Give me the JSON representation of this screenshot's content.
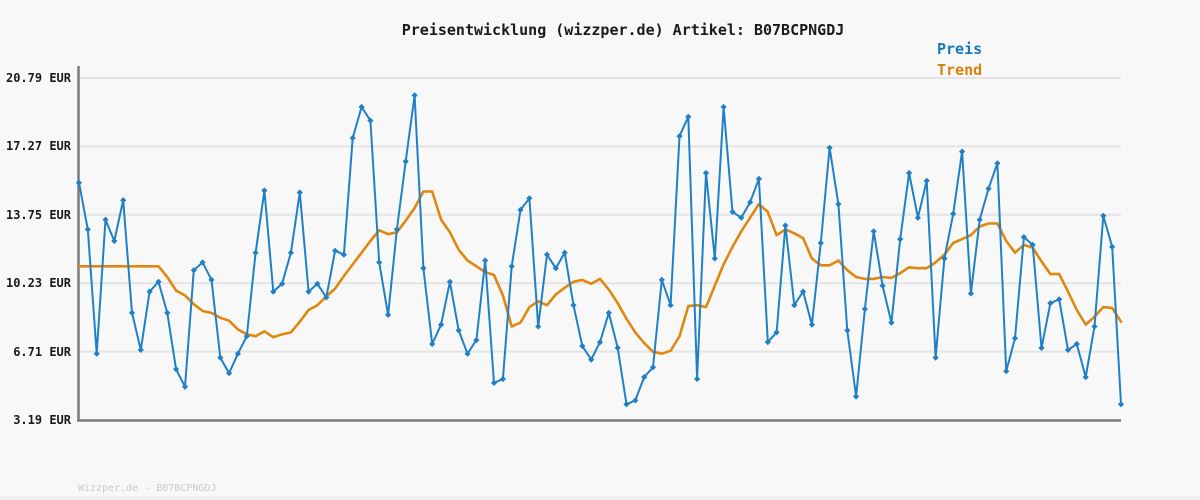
{
  "page": {
    "title": "Preisentwicklung (wizzper.de) Artikel: B07BCPNGDJ",
    "footer": "Wizzper.de - B07BCPNGDJ"
  },
  "legend": {
    "items": [
      {
        "label": "Preis",
        "color": "#1678be"
      },
      {
        "label": "Trend",
        "color": "#d5820b"
      }
    ]
  },
  "colors": {
    "background": "#f8f8f8",
    "grid": "#e4e4e4",
    "axis": "#7c7c7c",
    "title_text": "#1a1a1a",
    "tick_text": "#1a1a1a",
    "footer_text": "#c9c9c9",
    "price_line": "#2080c6",
    "trend_line": "#e0870f"
  },
  "chart_data": {
    "type": "line",
    "title": "Preisentwicklung (wizzper.de) Artikel: B07BCPNGDJ",
    "currency": "EUR",
    "xlabel": "",
    "ylabel": "",
    "x_tick_labels_visible": false,
    "grid": "horizontal",
    "legend_position": "top-right",
    "ylim": [
      3.19,
      20.79
    ],
    "yticks": [
      {
        "value": 20.79,
        "label": "20.79 EUR"
      },
      {
        "value": 17.27,
        "label": "17.27 EUR"
      },
      {
        "value": 13.75,
        "label": "13.75 EUR"
      },
      {
        "value": 10.23,
        "label": "10.23 EUR"
      },
      {
        "value": 6.71,
        "label": "6.71 EUR"
      },
      {
        "value": 3.19,
        "label": "3.19 EUR"
      }
    ],
    "series": [
      {
        "name": "Preis",
        "marker": "diamond",
        "color": "#2080c6",
        "values": [
          15.4,
          13.0,
          6.6,
          13.5,
          12.4,
          14.5,
          8.7,
          6.8,
          9.8,
          10.3,
          8.7,
          5.8,
          4.9,
          10.9,
          11.3,
          10.4,
          6.4,
          5.6,
          6.6,
          7.5,
          11.8,
          15.0,
          9.8,
          10.2,
          11.8,
          14.9,
          9.8,
          10.2,
          9.5,
          11.9,
          11.7,
          17.7,
          19.3,
          18.6,
          11.3,
          8.6,
          13.0,
          16.5,
          19.9,
          11.0,
          7.1,
          8.1,
          10.3,
          7.8,
          6.6,
          7.3,
          11.4,
          5.1,
          5.3,
          11.1,
          14.0,
          14.6,
          8.0,
          11.7,
          11.0,
          11.8,
          9.1,
          7.0,
          6.3,
          7.2,
          8.7,
          6.9,
          4.0,
          4.2,
          5.4,
          5.9,
          10.4,
          9.1,
          17.8,
          18.8,
          5.3,
          15.9,
          11.5,
          19.3,
          13.9,
          13.6,
          14.4,
          15.6,
          7.2,
          7.7,
          13.2,
          9.1,
          9.8,
          8.1,
          12.3,
          17.2,
          14.3,
          7.8,
          4.4,
          8.9,
          12.9,
          10.1,
          8.2,
          12.5,
          15.9,
          13.6,
          15.5,
          6.4,
          11.5,
          13.8,
          17.0,
          9.7,
          13.5,
          15.1,
          16.4,
          5.7,
          7.4,
          12.6,
          12.2,
          6.9,
          9.2,
          9.4,
          6.8,
          7.1,
          5.4,
          8.0,
          13.7,
          12.1,
          4.0
        ]
      },
      {
        "name": "Trend",
        "marker": "none",
        "color": "#e0870f",
        "values": [
          11.1,
          11.1,
          11.1,
          11.1,
          11.1,
          11.1,
          11.1,
          11.1,
          11.1,
          11.1,
          10.55,
          9.85,
          9.6,
          9.15,
          8.8,
          8.7,
          8.45,
          8.3,
          7.85,
          7.6,
          7.5,
          7.75,
          7.45,
          7.6,
          7.7,
          8.25,
          8.85,
          9.1,
          9.55,
          9.95,
          10.6,
          11.2,
          11.8,
          12.4,
          12.95,
          12.75,
          12.85,
          13.45,
          14.1,
          14.95,
          14.95,
          13.5,
          12.85,
          11.95,
          11.4,
          11.1,
          10.8,
          10.65,
          9.6,
          8.0,
          8.2,
          9.0,
          9.3,
          9.1,
          9.65,
          10.0,
          10.3,
          10.4,
          10.2,
          10.45,
          9.9,
          9.2,
          8.4,
          7.7,
          7.15,
          6.7,
          6.6,
          6.75,
          7.5,
          9.05,
          9.1,
          9.0,
          10.1,
          11.2,
          12.1,
          12.9,
          13.6,
          14.3,
          13.9,
          12.7,
          13.0,
          12.8,
          12.55,
          11.5,
          11.15,
          11.15,
          11.4,
          10.9,
          10.55,
          10.45,
          10.45,
          10.55,
          10.5,
          10.75,
          11.05,
          11.0,
          11.0,
          11.3,
          11.7,
          12.3,
          12.5,
          12.7,
          13.15,
          13.3,
          13.3,
          12.4,
          11.8,
          12.2,
          12.05,
          11.35,
          10.7,
          10.7,
          9.8,
          8.85,
          8.1,
          8.5,
          9.0,
          8.95,
          8.25
        ]
      }
    ]
  }
}
